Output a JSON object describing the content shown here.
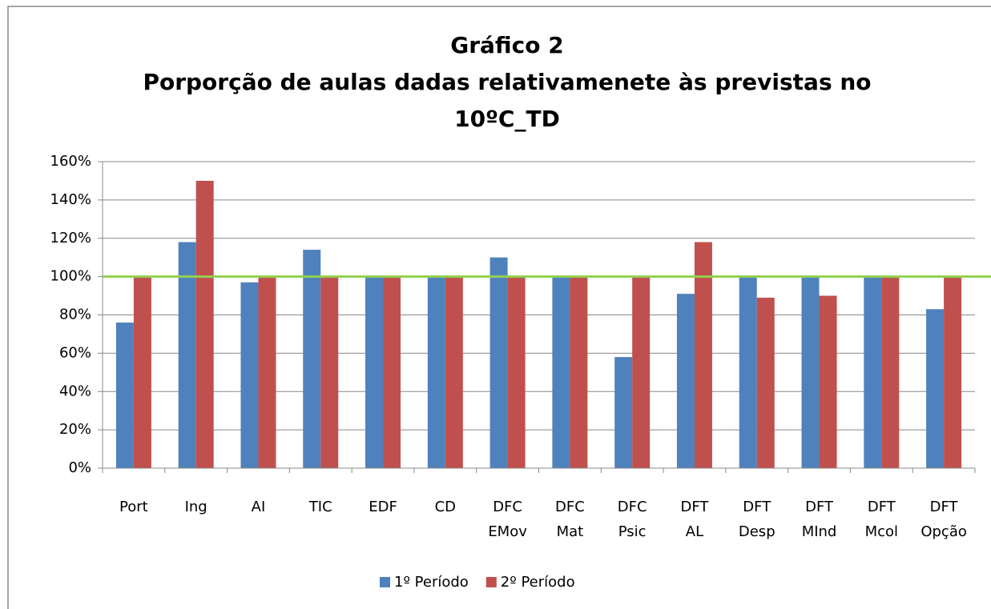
{
  "chart_data": {
    "type": "bar",
    "title": [
      "Gráfico 2",
      "Porporção de aulas dadas relativamenete às previstas no",
      "10ºC_TD"
    ],
    "categories": [
      "Port",
      "Ing",
      "AI",
      "TIC",
      "EDF",
      "CD",
      "DFC EMov",
      "DFC Mat",
      "DFC Psic",
      "DFT AL",
      "DFT Desp",
      "DFT MInd",
      "DFT Mcol",
      "DFT Opção"
    ],
    "series": [
      {
        "name": "1º Período",
        "color": "#4f81bd",
        "values": [
          76,
          118,
          97,
          114,
          100,
          100,
          110,
          100,
          58,
          91,
          100,
          100,
          100,
          83
        ]
      },
      {
        "name": "2º Período",
        "color": "#c0504d",
        "values": [
          100,
          150,
          100,
          100,
          100,
          100,
          100,
          100,
          100,
          118,
          89,
          90,
          100,
          100
        ]
      }
    ],
    "reference_line": {
      "value": 100,
      "color": "#92d050"
    },
    "ylim": [
      0,
      160
    ],
    "yticks": [
      {
        "value": 0,
        "label": "0%"
      },
      {
        "value": 20,
        "label": "20%"
      },
      {
        "value": 40,
        "label": "40%"
      },
      {
        "value": 60,
        "label": "60%"
      },
      {
        "value": 80,
        "label": "80%"
      },
      {
        "value": 100,
        "label": "100%"
      },
      {
        "value": 120,
        "label": "120%"
      },
      {
        "value": 140,
        "label": "140%"
      },
      {
        "value": 160,
        "label": "160%"
      }
    ],
    "grid": true,
    "legend": "bottom"
  }
}
